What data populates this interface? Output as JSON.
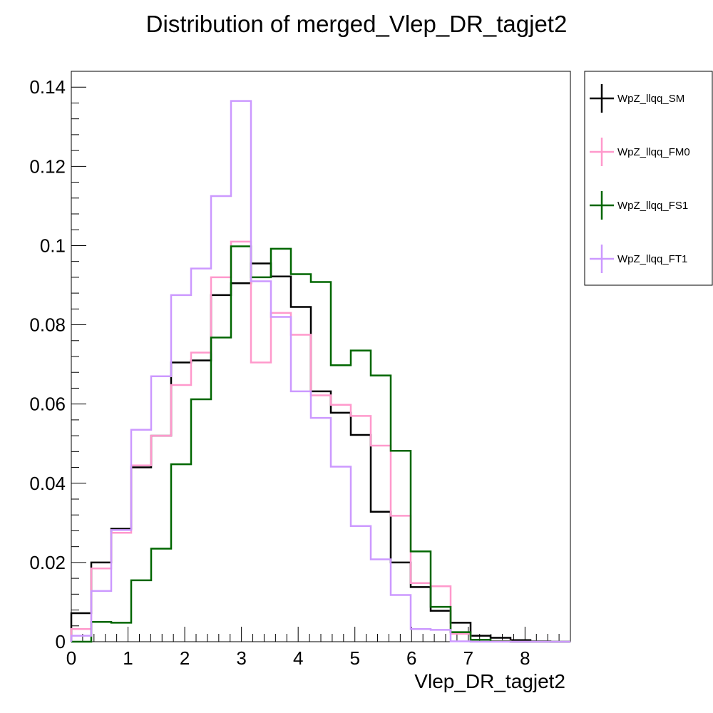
{
  "chart_data": {
    "type": "histogram",
    "title": "Distribution of merged_Vlep_DR_tagjet2",
    "xlabel": "Vlep_DR_tagjet2",
    "ylabel": "",
    "xlim": [
      0,
      8.8
    ],
    "ylim": [
      0,
      0.144
    ],
    "x_ticks": [
      "0",
      "1",
      "2",
      "3",
      "4",
      "5",
      "6",
      "7",
      "8"
    ],
    "y_ticks": [
      "0",
      "0.02",
      "0.04",
      "0.06",
      "0.08",
      "0.1",
      "0.12",
      "0.14"
    ],
    "bin_width": 0.352,
    "bin_edges_start": 0,
    "legend_position": "outside-right",
    "series": [
      {
        "name": "WpZ_llqq_SM",
        "color": "#000000",
        "values": [
          0.0072,
          0.02,
          0.0285,
          0.044,
          0.052,
          0.0705,
          0.071,
          0.0875,
          0.0905,
          0.0955,
          0.0922,
          0.0845,
          0.0632,
          0.0578,
          0.0522,
          0.0328,
          0.02,
          0.0138,
          0.0078,
          0.0048,
          0.0015,
          0.001,
          0.0004,
          0.0001,
          0.0
        ]
      },
      {
        "name": "WpZ_llqq_FM0",
        "color": "#ff99cc",
        "values": [
          0.0032,
          0.0185,
          0.0275,
          0.0445,
          0.052,
          0.0648,
          0.073,
          0.092,
          0.101,
          0.0705,
          0.083,
          0.0775,
          0.0622,
          0.0598,
          0.057,
          0.0495,
          0.0318,
          0.0148,
          0.014,
          0.002,
          0.0005,
          0.0002,
          0.0,
          0.0,
          0.0
        ]
      },
      {
        "name": "WpZ_llqq_FS1",
        "color": "#006600",
        "values": [
          0.0,
          0.005,
          0.0048,
          0.0155,
          0.0235,
          0.0448,
          0.0612,
          0.0768,
          0.0998,
          0.092,
          0.0992,
          0.0928,
          0.0908,
          0.0698,
          0.0735,
          0.0672,
          0.0482,
          0.0228,
          0.0088,
          0.0024,
          0.0005,
          0.0001,
          0.0,
          0.0,
          0.0
        ]
      },
      {
        "name": "WpZ_llqq_FT1",
        "color": "#cc99ff",
        "values": [
          0.0015,
          0.0128,
          0.0282,
          0.0535,
          0.067,
          0.0875,
          0.0942,
          0.1125,
          0.1365,
          0.091,
          0.082,
          0.0632,
          0.0565,
          0.0442,
          0.0292,
          0.0208,
          0.0118,
          0.0032,
          0.003,
          0.0001,
          0.0,
          0.0,
          0.0,
          0.0,
          0.0
        ]
      }
    ]
  }
}
